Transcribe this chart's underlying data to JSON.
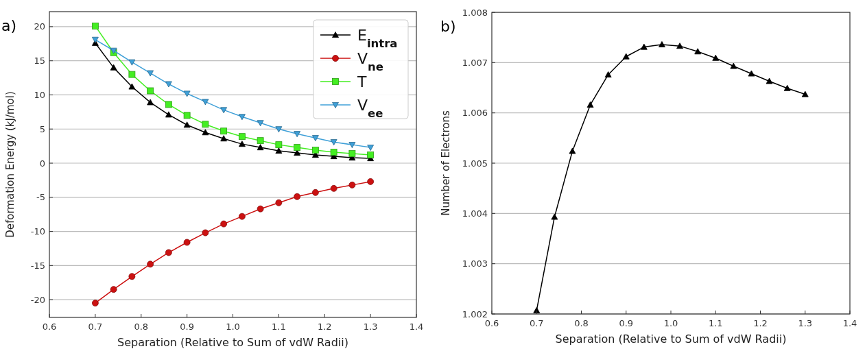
{
  "chart_data": [
    {
      "type": "line",
      "title": "a)",
      "xlabel": "Separation (Relative to Sum of vdW Radii)",
      "ylabel": "Deformation Energy (kJ/mol)",
      "x": [
        0.7,
        0.74,
        0.78,
        0.82,
        0.86,
        0.9,
        0.94,
        0.98,
        1.02,
        1.06,
        1.1,
        1.14,
        1.18,
        1.22,
        1.26,
        1.3
      ],
      "xlim": [
        0.6,
        1.4
      ],
      "xticks": [
        {
          "value": 0.6,
          "label": "0.6"
        },
        {
          "value": 0.7,
          "label": "0.7"
        },
        {
          "value": 0.8,
          "label": "0.8"
        },
        {
          "value": 0.9,
          "label": "0.9"
        },
        {
          "value": 1.0,
          "label": "1.0"
        },
        {
          "value": 1.1,
          "label": "1.1"
        },
        {
          "value": 1.2,
          "label": "1.2"
        },
        {
          "value": 1.3,
          "label": "1.3"
        },
        {
          "value": 1.4,
          "label": "1.4"
        }
      ],
      "ylim": [
        -22.6,
        22.2
      ],
      "yticks": [
        -20,
        -15,
        -10,
        -5,
        0,
        5,
        10,
        15,
        20
      ],
      "grid": "y",
      "legend": "top right",
      "series": [
        {
          "name": "E$_{intra}$",
          "color": "#000000",
          "marker": "triangle",
          "values": [
            17.6,
            14.0,
            11.2,
            8.9,
            7.1,
            5.6,
            4.5,
            3.6,
            2.8,
            2.3,
            1.8,
            1.5,
            1.2,
            1.0,
            0.8,
            0.7
          ]
        },
        {
          "name": "V$_{ne}$",
          "color": "#cc1111",
          "marker": "circle",
          "values": [
            -20.5,
            -18.5,
            -16.6,
            -14.8,
            -13.1,
            -11.6,
            -10.2,
            -8.9,
            -7.8,
            -6.7,
            -5.8,
            -4.9,
            -4.3,
            -3.7,
            -3.2,
            -2.7
          ]
        },
        {
          "name": "T",
          "color": "#44ee22",
          "marker": "square",
          "values": [
            20.1,
            16.2,
            13.0,
            10.6,
            8.6,
            7.0,
            5.7,
            4.7,
            3.9,
            3.3,
            2.7,
            2.3,
            1.9,
            1.6,
            1.4,
            1.2
          ]
        },
        {
          "name": "V$_{ee}$",
          "color": "#3fa0d8",
          "marker": "triangle-down",
          "values": [
            18.1,
            16.5,
            14.8,
            13.2,
            11.6,
            10.2,
            9.0,
            7.8,
            6.8,
            5.9,
            5.0,
            4.3,
            3.7,
            3.1,
            2.7,
            2.3
          ]
        }
      ]
    },
    {
      "type": "line",
      "title": "b)",
      "xlabel": "Separation (Relative to Sum of vdW Radii)",
      "ylabel": "Number of Electrons",
      "x": [
        0.7,
        0.74,
        0.78,
        0.82,
        0.86,
        0.9,
        0.94,
        0.98,
        1.02,
        1.06,
        1.1,
        1.14,
        1.18,
        1.22,
        1.26,
        1.3
      ],
      "xlim": [
        0.6,
        1.4
      ],
      "xticks": [
        {
          "value": 0.6,
          "label": "0.6"
        },
        {
          "value": 0.7,
          "label": "0.7"
        },
        {
          "value": 0.8,
          "label": "0.8"
        },
        {
          "value": 0.9,
          "label": "0.9"
        },
        {
          "value": 1.0,
          "label": "1.0"
        },
        {
          "value": 1.1,
          "label": "1.1"
        },
        {
          "value": 1.2,
          "label": "1.2"
        },
        {
          "value": 1.3,
          "label": "1.3"
        },
        {
          "value": 1.4,
          "label": "1.4"
        }
      ],
      "ylim": [
        1.002,
        1.008
      ],
      "yticks": [
        {
          "value": 1.002,
          "label": "1.002"
        },
        {
          "value": 1.003,
          "label": "1.003"
        },
        {
          "value": 1.004,
          "label": "1.004"
        },
        {
          "value": 1.005,
          "label": "1.005"
        },
        {
          "value": 1.006,
          "label": "1.006"
        },
        {
          "value": 1.007,
          "label": "1.007"
        },
        {
          "value": 1.008,
          "label": "1.008"
        }
      ],
      "grid": "y",
      "series": [
        {
          "color": "#000000",
          "marker": "triangle",
          "values": [
            1.00207,
            1.00393,
            1.00524,
            1.00616,
            1.00676,
            1.00712,
            1.00731,
            1.00736,
            1.00733,
            1.00722,
            1.00709,
            1.00693,
            1.00678,
            1.00663,
            1.00649,
            1.00637
          ]
        }
      ]
    }
  ]
}
